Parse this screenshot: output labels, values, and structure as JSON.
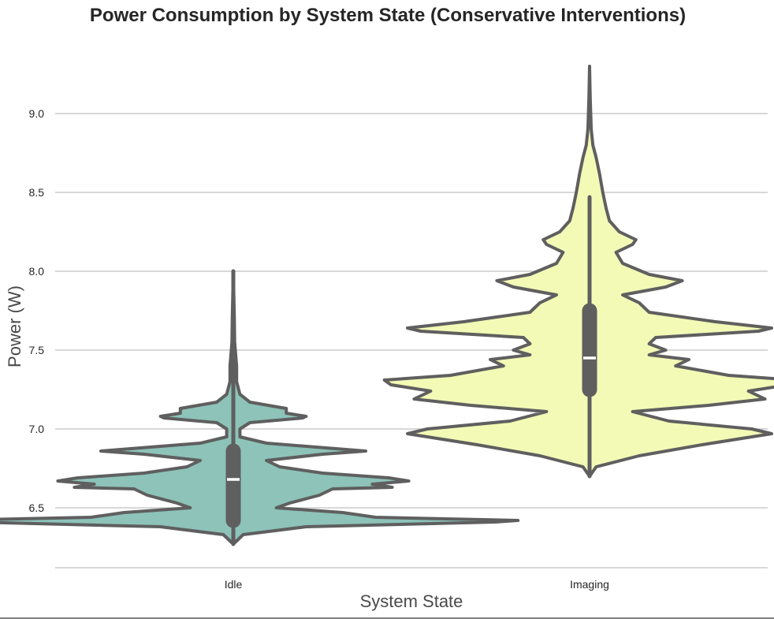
{
  "chart_data": {
    "type": "violin",
    "title": "Power Consumption by System State (Conservative Interventions)",
    "xlabel": "System State",
    "ylabel": "Power (W)",
    "categories": [
      "Idle",
      "Imaging"
    ],
    "ylim": [
      6.12,
      9.35
    ],
    "yticks": [
      6.5,
      7.0,
      7.5,
      8.0,
      8.5,
      9.0
    ],
    "grid": "horizontal",
    "colors": {
      "Idle": "#8dc3b8",
      "Imaging": "#f3fab6",
      "outline": "#5f5f5f",
      "grid": "#cccccc"
    },
    "violins": [
      {
        "name": "Idle",
        "min": 6.27,
        "max": 8.0,
        "q1": 6.42,
        "median": 6.68,
        "q3": 6.86,
        "whisker_low": 6.27,
        "whisker_high": 8.0,
        "profile_y": [
          6.27,
          6.33,
          6.38,
          6.41,
          6.42,
          6.44,
          6.47,
          6.5,
          6.53,
          6.58,
          6.62,
          6.63,
          6.65,
          6.67,
          6.69,
          6.72,
          6.76,
          6.8,
          6.84,
          6.86,
          6.88,
          6.91,
          6.95,
          7.0,
          7.04,
          7.07,
          7.08,
          7.1,
          7.13,
          7.17,
          7.22,
          7.3,
          7.4,
          7.55,
          7.7,
          8.0
        ],
        "profile_w": [
          0.0,
          0.03,
          0.22,
          0.79,
          0.86,
          0.43,
          0.33,
          0.13,
          0.17,
          0.26,
          0.3,
          0.48,
          0.42,
          0.53,
          0.47,
          0.27,
          0.14,
          0.1,
          0.27,
          0.4,
          0.28,
          0.1,
          0.02,
          0.02,
          0.05,
          0.21,
          0.22,
          0.16,
          0.16,
          0.05,
          0.02,
          0.01,
          0.01,
          0.004,
          0.003,
          0.0
        ]
      },
      {
        "name": "Imaging",
        "min": 6.7,
        "max": 9.3,
        "q1": 7.25,
        "median": 7.45,
        "q3": 7.75,
        "whisker_low": 6.7,
        "whisker_high": 8.47,
        "profile_y": [
          6.7,
          6.76,
          6.83,
          6.9,
          6.97,
          7.0,
          7.05,
          7.11,
          7.15,
          7.19,
          7.24,
          7.28,
          7.31,
          7.34,
          7.4,
          7.44,
          7.47,
          7.5,
          7.54,
          7.58,
          7.62,
          7.64,
          7.68,
          7.74,
          7.8,
          7.85,
          7.9,
          7.94,
          7.98,
          8.05,
          8.12,
          8.17,
          8.2,
          8.25,
          8.32,
          8.4,
          8.5,
          8.62,
          8.72,
          8.8,
          8.9,
          9.1,
          9.3
        ],
        "profile_w": [
          0.0,
          0.02,
          0.15,
          0.34,
          0.55,
          0.49,
          0.24,
          0.13,
          0.36,
          0.53,
          0.48,
          0.6,
          0.62,
          0.42,
          0.26,
          0.3,
          0.18,
          0.23,
          0.18,
          0.2,
          0.51,
          0.55,
          0.38,
          0.18,
          0.15,
          0.1,
          0.23,
          0.28,
          0.18,
          0.1,
          0.08,
          0.13,
          0.14,
          0.09,
          0.06,
          0.05,
          0.04,
          0.03,
          0.02,
          0.01,
          0.005,
          0.002,
          0.0
        ]
      }
    ]
  }
}
